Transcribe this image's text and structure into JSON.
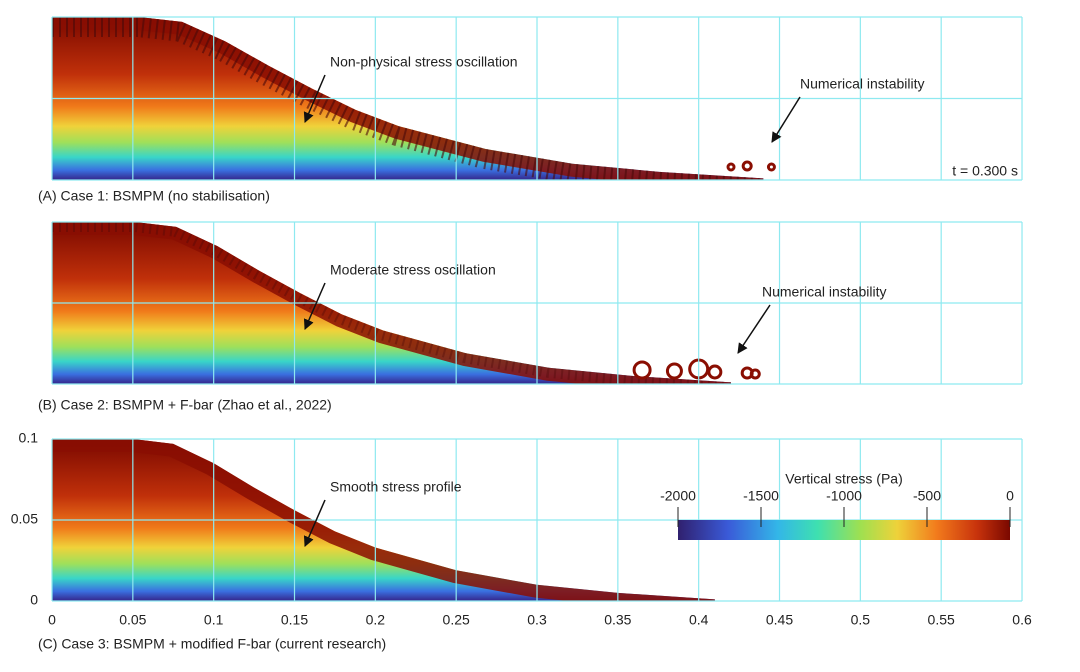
{
  "panels": [
    {
      "caption": "(A) Case 1: BSMPM (no stabilisation)",
      "annotations": [
        "Non-physical stress oscillation",
        "Numerical instability"
      ],
      "time": "t = 0.300 s"
    },
    {
      "caption": "(B) Case 2: BSMPM + F-bar (Zhao et al., 2022)",
      "annotations": [
        "Moderate stress oscillation",
        "Numerical instability"
      ]
    },
    {
      "caption": "(C) Case 3: BSMPM + modified F-bar (current research)",
      "annotations": [
        "Smooth stress profile"
      ]
    }
  ],
  "xticks": [
    0,
    0.05,
    0.1,
    0.15,
    0.2,
    0.25,
    0.3,
    0.35,
    0.4,
    0.45,
    0.5,
    0.55,
    0.6
  ],
  "yticks": [
    0,
    0.05,
    0.1
  ],
  "colorbar": {
    "title": "Vertical stress (Pa)",
    "ticks": [
      -2000,
      -1500,
      -1000,
      -500,
      0
    ]
  }
}
